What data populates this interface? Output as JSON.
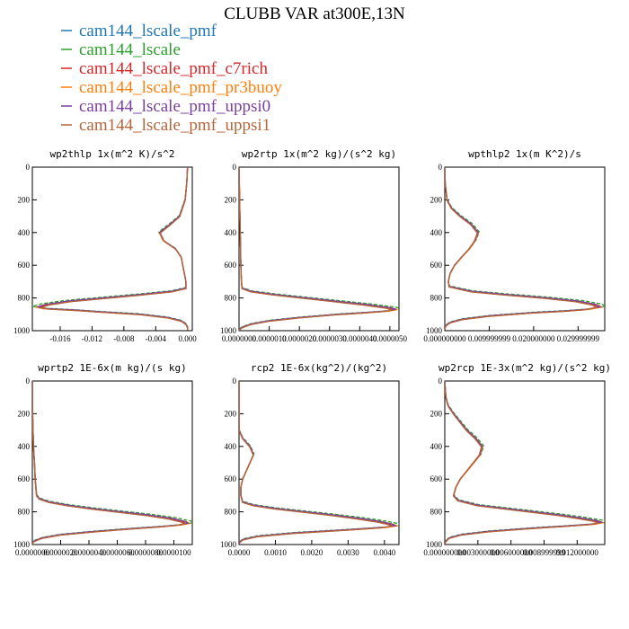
{
  "figure": {
    "title": "CLUBB VAR at300E,13N"
  },
  "legend": [
    {
      "name": "cam144_lscale_pmf",
      "color": "#1f77b4"
    },
    {
      "name": "cam144_lscale",
      "color": "#2ca02c"
    },
    {
      "name": "cam144_lscale_pmf_c7rich",
      "color": "#d62728"
    },
    {
      "name": "cam144_lscale_pmf_pr3buoy",
      "color": "#ff7f0e"
    },
    {
      "name": "cam144_lscale_pmf_uppsi0",
      "color": "#7b3f9e"
    },
    {
      "name": "cam144_lscale_pmf_uppsi1",
      "color": "#b5653a"
    }
  ],
  "chart_data": [
    {
      "type": "line",
      "title": "wp2thlp  1x(m^2 K)/s^2",
      "xlabel": "",
      "ylabel": "",
      "xlim": [
        -0.0195,
        0.0006
      ],
      "ylim": [
        1000,
        0
      ],
      "xticks": [
        -0.016,
        -0.012,
        -0.008,
        -0.004,
        0.0
      ],
      "xtick_labels": [
        "-0.016",
        "-0.012",
        "-0.008",
        "-0.004",
        "0.000"
      ],
      "yticks": [
        0,
        200,
        400,
        600,
        800,
        1000
      ],
      "ytick_labels": [
        "0",
        "200",
        "400",
        "600",
        "800",
        "1000"
      ],
      "series": [
        {
          "y": [
            0,
            100,
            200,
            300,
            350,
            400,
            450,
            500,
            550,
            600,
            650,
            700,
            740,
            760,
            780,
            800,
            820,
            840,
            855,
            865,
            875,
            885,
            900,
            920,
            940,
            960,
            980,
            995
          ],
          "x": [
            0.0,
            -0.0001,
            -0.0003,
            -0.001,
            -0.0022,
            -0.0035,
            -0.003,
            -0.0015,
            -0.0008,
            -0.0006,
            -0.0004,
            -0.0002,
            -0.0002,
            -0.002,
            -0.006,
            -0.0105,
            -0.015,
            -0.0178,
            -0.0188,
            -0.018,
            -0.014,
            -0.011,
            -0.006,
            -0.0025,
            -0.0008,
            -0.0002,
            0.0,
            0.0
          ]
        }
      ]
    },
    {
      "type": "line",
      "title": "wp2rtp  1x(m^2 kg)/(s^2 kg)",
      "xlabel": "",
      "ylabel": "",
      "xlim": [
        0,
        5.3e-06
      ],
      "ylim": [
        1000,
        0
      ],
      "xticks": [
        0.0,
        1e-06,
        2e-06,
        3e-06,
        4e-06,
        5e-06
      ],
      "xtick_labels": [
        "0.0000000",
        "0.0000010",
        "0.0000020",
        "0.0000030",
        "0.0000040",
        "0.0000050"
      ],
      "yticks": [
        0,
        200,
        400,
        600,
        800,
        1000
      ],
      "ytick_labels": [
        "0",
        "200",
        "400",
        "600",
        "800",
        "1000"
      ],
      "series": [
        {
          "y": [
            0,
            200,
            400,
            600,
            700,
            740,
            760,
            780,
            800,
            820,
            840,
            860,
            870,
            880,
            890,
            900,
            920,
            940,
            960,
            980,
            995
          ],
          "x": [
            0.0,
            2e-08,
            4e-08,
            6e-08,
            8e-08,
            1e-07,
            4e-07,
            1.2e-06,
            2.2e-06,
            3.2e-06,
            4.2e-06,
            5e-06,
            5.2e-06,
            4.9e-06,
            4.2e-06,
            3.3e-06,
            2e-06,
            1e-06,
            4e-07,
            1e-07,
            0.0
          ]
        }
      ]
    },
    {
      "type": "line",
      "title": "wpthlp2  1x(m K^2)/s",
      "xlabel": "",
      "ylabel": "",
      "xlim": [
        0,
        0.036
      ],
      "ylim": [
        1000,
        0
      ],
      "xticks": [
        0.0,
        0.009999999,
        0.02,
        0.029999999
      ],
      "xtick_labels": [
        "0.000000000",
        "0.009999999",
        "0.020000000",
        "0.029999999"
      ],
      "yticks": [
        0,
        200,
        400,
        600,
        800,
        1000
      ],
      "ytick_labels": [
        "0",
        "200",
        "400",
        "600",
        "800",
        "1000"
      ],
      "series": [
        {
          "y": [
            0,
            100,
            200,
            250,
            300,
            350,
            400,
            450,
            500,
            550,
            600,
            650,
            700,
            730,
            760,
            780,
            800,
            820,
            840,
            855,
            870,
            880,
            890,
            910,
            930,
            950,
            970,
            990
          ],
          "x": [
            0.0,
            0.0001,
            0.0005,
            0.0015,
            0.0035,
            0.006,
            0.0075,
            0.0068,
            0.0055,
            0.0038,
            0.0022,
            0.0012,
            0.0008,
            0.001,
            0.006,
            0.014,
            0.023,
            0.03,
            0.034,
            0.035,
            0.032,
            0.027,
            0.02,
            0.01,
            0.004,
            0.0012,
            0.0002,
            0.0
          ]
        }
      ]
    },
    {
      "type": "line",
      "title": "wprtp2  1E-6x(m kg)/(s kg)",
      "xlabel": "",
      "ylabel": "",
      "xlim": [
        0,
        1.13e-05
      ],
      "ylim": [
        1000,
        0
      ],
      "xticks": [
        0.0,
        2e-06,
        4e-06,
        6e-06,
        8e-06,
        1e-05
      ],
      "xtick_labels": [
        "0.0000000",
        "0.0000020",
        "0.0000040",
        "0.0000060",
        "0.0000080",
        "0.0000100"
      ],
      "yticks": [
        0,
        200,
        400,
        600,
        800,
        1000
      ],
      "ytick_labels": [
        "0",
        "200",
        "400",
        "600",
        "800",
        "1000"
      ],
      "series": [
        {
          "y": [
            0,
            200,
            400,
            500,
            600,
            650,
            700,
            720,
            740,
            760,
            780,
            800,
            820,
            840,
            860,
            870,
            880,
            890,
            900,
            920,
            940,
            960,
            980,
            995
          ],
          "x": [
            0.0,
            2e-08,
            8e-08,
            1.5e-07,
            2e-07,
            2.5e-07,
            3e-07,
            5e-07,
            1.2e-06,
            2.5e-06,
            4.2e-06,
            6.2e-06,
            8.2e-06,
            9.8e-06,
            1.08e-05,
            1.1e-05,
            1.04e-05,
            9.2e-06,
            7.5e-06,
            4.5e-06,
            2e-06,
            7e-07,
            1e-07,
            0.0
          ]
        }
      ]
    },
    {
      "type": "line",
      "title": "rcp2  1E-6x(kg^2)/(kg^2)",
      "xlabel": "",
      "ylabel": "",
      "xlim": [
        0,
        0.0044
      ],
      "ylim": [
        1000,
        0
      ],
      "xticks": [
        0.0,
        0.001,
        0.002,
        0.003,
        0.004
      ],
      "xtick_labels": [
        "0.0000",
        "0.0010",
        "0.0020",
        "0.0030",
        "0.0040"
      ],
      "yticks": [
        0,
        200,
        400,
        600,
        800,
        1000
      ],
      "ytick_labels": [
        "0",
        "200",
        "400",
        "600",
        "800",
        "1000"
      ],
      "series": [
        {
          "y": [
            0,
            200,
            300,
            350,
            400,
            450,
            500,
            550,
            600,
            650,
            700,
            740,
            760,
            780,
            800,
            820,
            840,
            860,
            875,
            885,
            895,
            910,
            930,
            950,
            970,
            990
          ],
          "x": [
            0.0,
            0.0,
            0.0,
            0.0001,
            0.0003,
            0.0004,
            0.0003,
            0.0002,
            0.0001,
            5e-05,
            5e-05,
            0.0001,
            0.0004,
            0.001,
            0.0018,
            0.0026,
            0.0033,
            0.0039,
            0.0042,
            0.0043,
            0.004,
            0.003,
            0.0015,
            0.0005,
            0.0001,
            0.0
          ]
        }
      ]
    },
    {
      "type": "line",
      "title": "wp2rcp  1E-3x(m^2 kg)/(s^2 kg)",
      "xlabel": "",
      "ylabel": "",
      "xlim": [
        0,
        0.0145
      ],
      "ylim": [
        1000,
        0
      ],
      "xticks": [
        0.0,
        0.003,
        0.006,
        0.008999999,
        0.012
      ],
      "xtick_labels": [
        "0.000000000",
        "0.003000000",
        "0.006000000",
        "0.008999999",
        "0.012000000"
      ],
      "yticks": [
        0,
        200,
        400,
        600,
        800,
        1000
      ],
      "ytick_labels": [
        "0",
        "200",
        "400",
        "600",
        "800",
        "1000"
      ],
      "series": [
        {
          "y": [
            0,
            100,
            150,
            200,
            250,
            300,
            350,
            400,
            450,
            500,
            550,
            600,
            650,
            700,
            730,
            760,
            780,
            800,
            820,
            840,
            855,
            865,
            875,
            885,
            900,
            920,
            940,
            960,
            980,
            995
          ],
          "x": [
            0.0,
            0.0001,
            0.0003,
            0.0008,
            0.0014,
            0.002,
            0.0028,
            0.0034,
            0.0032,
            0.0026,
            0.002,
            0.0014,
            0.001,
            0.0008,
            0.0012,
            0.003,
            0.0055,
            0.008,
            0.0105,
            0.0125,
            0.0138,
            0.0142,
            0.0135,
            0.0115,
            0.008,
            0.004,
            0.0015,
            0.0004,
            0.0001,
            0.0
          ]
        }
      ]
    }
  ]
}
